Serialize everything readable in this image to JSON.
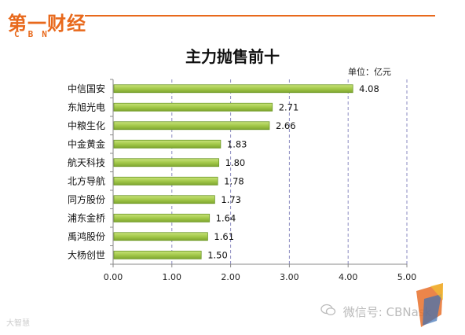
{
  "brand": {
    "logo_text": "第一财经",
    "logo_sub": "CBN"
  },
  "chart_data": {
    "type": "bar",
    "orientation": "horizontal",
    "title": "主力抛售前十",
    "unit_label": "单位：亿元",
    "categories": [
      "中信国安",
      "东旭光电",
      "中粮生化",
      "中金黄金",
      "航天科技",
      "北方导航",
      "同方股份",
      "浦东金桥",
      "禹鸿股份",
      "大杨创世"
    ],
    "values": [
      4.08,
      2.71,
      2.66,
      1.83,
      1.8,
      1.78,
      1.73,
      1.64,
      1.61,
      1.5
    ],
    "data_labels": [
      "4.08",
      "2.71",
      "2.66",
      "1.83",
      "1.80",
      "1.78",
      "1.73",
      "1.64",
      "1.61",
      "1.50"
    ],
    "xlim": [
      0,
      5
    ],
    "xticks": [
      "0.00",
      "1.00",
      "2.00",
      "3.00",
      "4.00",
      "5.00"
    ],
    "grid": "vertical dashed",
    "bar_color": "#a3c94a",
    "bar_edge_color": "#6f9a2a"
  },
  "watermarks": {
    "left": "大智慧",
    "right": "微信号: CBNask"
  }
}
